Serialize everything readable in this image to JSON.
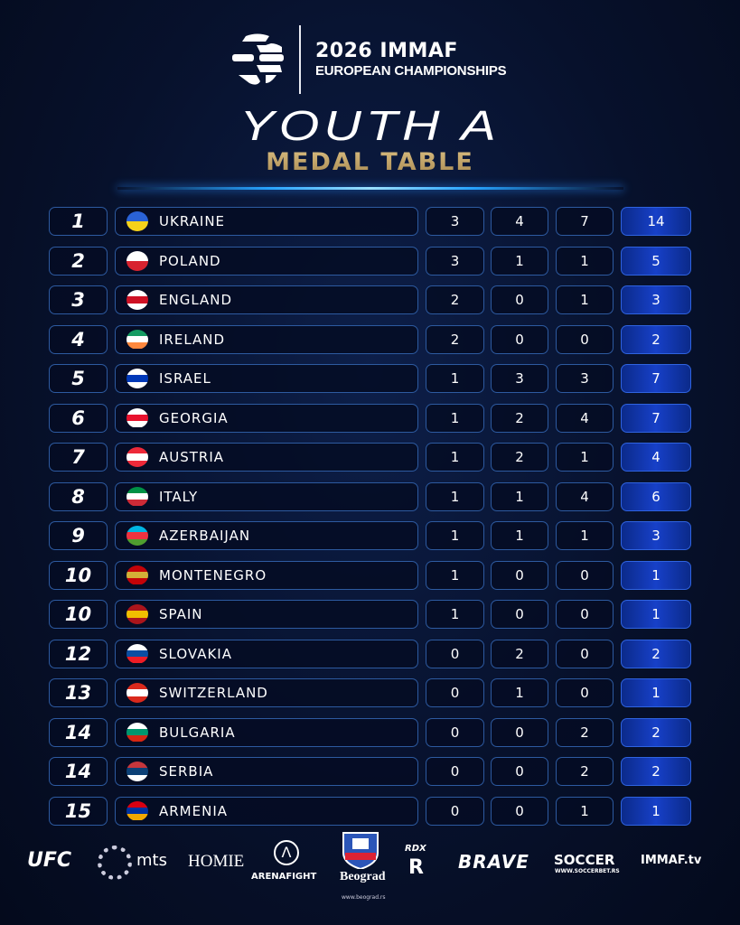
{
  "header": {
    "event_year": "2026 IMMAF",
    "event_name": "EUROPEAN CHAMPIONSHIPS",
    "title": "YOUTH A",
    "subtitle": "MEDAL TABLE"
  },
  "colors": {
    "gold_text": "#c2a265",
    "total_fill": "#1740c8",
    "border": "#2d5aa0",
    "background": "#07112c"
  },
  "rows": [
    {
      "rank": "1",
      "country": "UKRAINE",
      "flag": [
        "#2a62d6",
        "#f5d21a"
      ],
      "gold": "3",
      "silver": "4",
      "bronze": "7",
      "total": "14"
    },
    {
      "rank": "2",
      "country": "POLAND",
      "flag": [
        "#ffffff",
        "#d8232f"
      ],
      "gold": "3",
      "silver": "1",
      "bronze": "1",
      "total": "5"
    },
    {
      "rank": "3",
      "country": "ENGLAND",
      "flag": [
        "#ffffff",
        "#ce1124",
        "#ffffff"
      ],
      "gold": "2",
      "silver": "0",
      "bronze": "1",
      "total": "3"
    },
    {
      "rank": "4",
      "country": "IRELAND",
      "flag": [
        "#169b62",
        "#ffffff",
        "#ff883e"
      ],
      "gold": "2",
      "silver": "0",
      "bronze": "0",
      "total": "2"
    },
    {
      "rank": "5",
      "country": "ISRAEL",
      "flag": [
        "#ffffff",
        "#0038b8",
        "#ffffff"
      ],
      "gold": "1",
      "silver": "3",
      "bronze": "3",
      "total": "7"
    },
    {
      "rank": "6",
      "country": "GEORGIA",
      "flag": [
        "#ffffff",
        "#e8112d",
        "#ffffff"
      ],
      "gold": "1",
      "silver": "2",
      "bronze": "4",
      "total": "7"
    },
    {
      "rank": "7",
      "country": "AUSTRIA",
      "flag": [
        "#ed2939",
        "#ffffff",
        "#ed2939"
      ],
      "gold": "1",
      "silver": "2",
      "bronze": "1",
      "total": "4"
    },
    {
      "rank": "8",
      "country": "ITALY",
      "flag": [
        "#009246",
        "#ffffff",
        "#ce2b37"
      ],
      "gold": "1",
      "silver": "1",
      "bronze": "4",
      "total": "6"
    },
    {
      "rank": "9",
      "country": "AZERBAIJAN",
      "flag": [
        "#00b5e2",
        "#ef3340",
        "#509e2f"
      ],
      "gold": "1",
      "silver": "1",
      "bronze": "1",
      "total": "3"
    },
    {
      "rank": "10",
      "country": "MONTENEGRO",
      "flag": [
        "#c40308",
        "#d4af37",
        "#c40308"
      ],
      "gold": "1",
      "silver": "0",
      "bronze": "0",
      "total": "1"
    },
    {
      "rank": "10",
      "country": "SPAIN",
      "flag": [
        "#aa151b",
        "#f1bf00",
        "#aa151b"
      ],
      "gold": "1",
      "silver": "0",
      "bronze": "0",
      "total": "1"
    },
    {
      "rank": "12",
      "country": "SLOVAKIA",
      "flag": [
        "#ffffff",
        "#0b4ea2",
        "#ee1c25"
      ],
      "gold": "0",
      "silver": "2",
      "bronze": "0",
      "total": "2"
    },
    {
      "rank": "13",
      "country": "SWITZERLAND",
      "flag": [
        "#da291c",
        "#ffffff",
        "#da291c"
      ],
      "gold": "0",
      "silver": "1",
      "bronze": "0",
      "total": "1"
    },
    {
      "rank": "14",
      "country": "BULGARIA",
      "flag": [
        "#ffffff",
        "#00966e",
        "#d62612"
      ],
      "gold": "0",
      "silver": "0",
      "bronze": "2",
      "total": "2"
    },
    {
      "rank": "14",
      "country": "SERBIA",
      "flag": [
        "#c6363c",
        "#0c4076",
        "#ffffff"
      ],
      "gold": "0",
      "silver": "0",
      "bronze": "2",
      "total": "2"
    },
    {
      "rank": "15",
      "country": "ARMENIA",
      "flag": [
        "#d90012",
        "#0033a0",
        "#f2a800"
      ],
      "gold": "0",
      "silver": "0",
      "bronze": "1",
      "total": "1"
    }
  ],
  "sponsors": [
    "UFC",
    "mts",
    "HOMIE",
    "ARENAFIGHT",
    "Beograd",
    "RDX",
    "BRAVE",
    "SOCCER",
    "IMMAF.tv"
  ],
  "sponsor_sublabels": {
    "beograd": "www.beograd.rs",
    "soccer": "WWW.SOCCERBET.RS"
  }
}
